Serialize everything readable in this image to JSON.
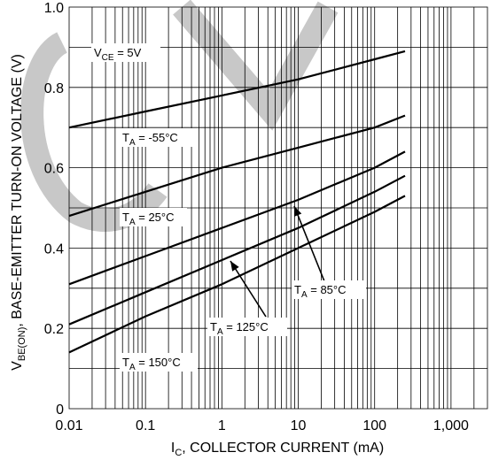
{
  "chart_data": {
    "type": "line",
    "title": "",
    "xlabel": "I",
    "xlabel_sub": "C",
    "xlabel_rest": ", COLLECTOR CURRENT (mA)",
    "ylabel": "V",
    "ylabel_sub": "BE(ON)",
    "ylabel_rest": ", BASE-EMITTER TURN-ON VOLTAGE (V)",
    "x_scale": "log",
    "xlim": [
      0.01,
      3000
    ],
    "ylim": [
      0,
      1.0
    ],
    "x_ticks": [
      {
        "value": 0.01,
        "label": "0.01"
      },
      {
        "value": 0.1,
        "label": "0.1"
      },
      {
        "value": 1,
        "label": "1"
      },
      {
        "value": 10,
        "label": "10"
      },
      {
        "value": 100,
        "label": "100"
      },
      {
        "value": 1000,
        "label": "1,000"
      }
    ],
    "y_ticks": [
      {
        "value": 0,
        "label": "0"
      },
      {
        "value": 0.2,
        "label": "0.2"
      },
      {
        "value": 0.4,
        "label": "0.4"
      },
      {
        "value": 0.6,
        "label": "0.6"
      },
      {
        "value": 0.8,
        "label": "0.8"
      },
      {
        "value": 1.0,
        "label": "1.0"
      }
    ],
    "grid": true,
    "condition": {
      "prefix": "V",
      "sub": "CE",
      "rest": " = 5V"
    },
    "series": [
      {
        "name": "-55°C",
        "x": [
          0.01,
          0.1,
          1,
          10,
          100,
          250
        ],
        "y": [
          0.7,
          0.74,
          0.78,
          0.82,
          0.87,
          0.89
        ]
      },
      {
        "name": "25°C",
        "x": [
          0.01,
          0.1,
          1,
          10,
          100,
          250
        ],
        "y": [
          0.48,
          0.54,
          0.6,
          0.65,
          0.7,
          0.73
        ]
      },
      {
        "name": "85°C",
        "x": [
          0.01,
          0.1,
          1,
          10,
          100,
          250
        ],
        "y": [
          0.31,
          0.38,
          0.45,
          0.52,
          0.6,
          0.64
        ]
      },
      {
        "name": "125°C",
        "x": [
          0.01,
          0.1,
          1,
          10,
          100,
          250
        ],
        "y": [
          0.21,
          0.29,
          0.37,
          0.45,
          0.54,
          0.58
        ]
      },
      {
        "name": "150°C",
        "x": [
          0.01,
          0.1,
          1,
          10,
          100,
          250
        ],
        "y": [
          0.14,
          0.23,
          0.31,
          0.4,
          0.49,
          0.53
        ]
      }
    ],
    "annotations": [
      {
        "prefix": "T",
        "sub": "A",
        "rest": " = -55°C"
      },
      {
        "prefix": "T",
        "sub": "A",
        "rest": " = 25°C"
      },
      {
        "prefix": "T",
        "sub": "A",
        "rest": " = 85°C"
      },
      {
        "prefix": "T",
        "sub": "A",
        "rest": " = 125°C"
      },
      {
        "prefix": "T",
        "sub": "A",
        "rest": " = 150°C"
      }
    ]
  }
}
